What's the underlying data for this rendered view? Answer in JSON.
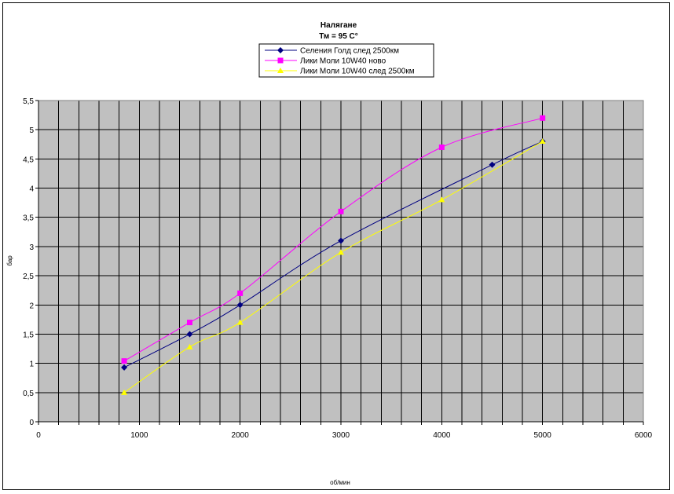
{
  "chart_data": {
    "type": "line",
    "title": "Налягане",
    "subtitle": "Тм = 95  С°",
    "xlabel": "об/мин",
    "ylabel": "бар",
    "xlim": [
      0,
      6000
    ],
    "ylim": [
      0,
      5.5
    ],
    "x_ticks": [
      "0",
      "1000",
      "2000",
      "3000",
      "4000",
      "5000",
      "6000"
    ],
    "y_ticks": [
      "0",
      "0,5",
      "1",
      "1,5",
      "2",
      "2,5",
      "3",
      "3,5",
      "4",
      "4,5",
      "5",
      "5,5"
    ],
    "grid": true,
    "plot_background": "#c0c0c0",
    "legend_position": "top-center",
    "series": [
      {
        "name": "Селения Голд след 2500км",
        "color": "#000080",
        "marker": "diamond",
        "points": [
          [
            850,
            0.93
          ],
          [
            1500,
            1.5
          ],
          [
            2000,
            2.0
          ],
          [
            3000,
            3.1
          ],
          [
            4500,
            4.4
          ],
          [
            5000,
            4.8
          ]
        ]
      },
      {
        "name": "Лики Моли 10W40 ново",
        "color": "#ff00ff",
        "marker": "square",
        "points": [
          [
            850,
            1.04
          ],
          [
            1500,
            1.7
          ],
          [
            2000,
            2.2
          ],
          [
            3000,
            3.6
          ],
          [
            4000,
            4.7
          ],
          [
            5000,
            5.2
          ]
        ]
      },
      {
        "name": "Лики Моли 10W40 след 2500км",
        "color": "#ffff00",
        "marker": "triangle",
        "points": [
          [
            850,
            0.5
          ],
          [
            1500,
            1.28
          ],
          [
            2000,
            1.7
          ],
          [
            3000,
            2.9
          ],
          [
            4000,
            3.8
          ],
          [
            5000,
            4.8
          ]
        ]
      }
    ]
  }
}
